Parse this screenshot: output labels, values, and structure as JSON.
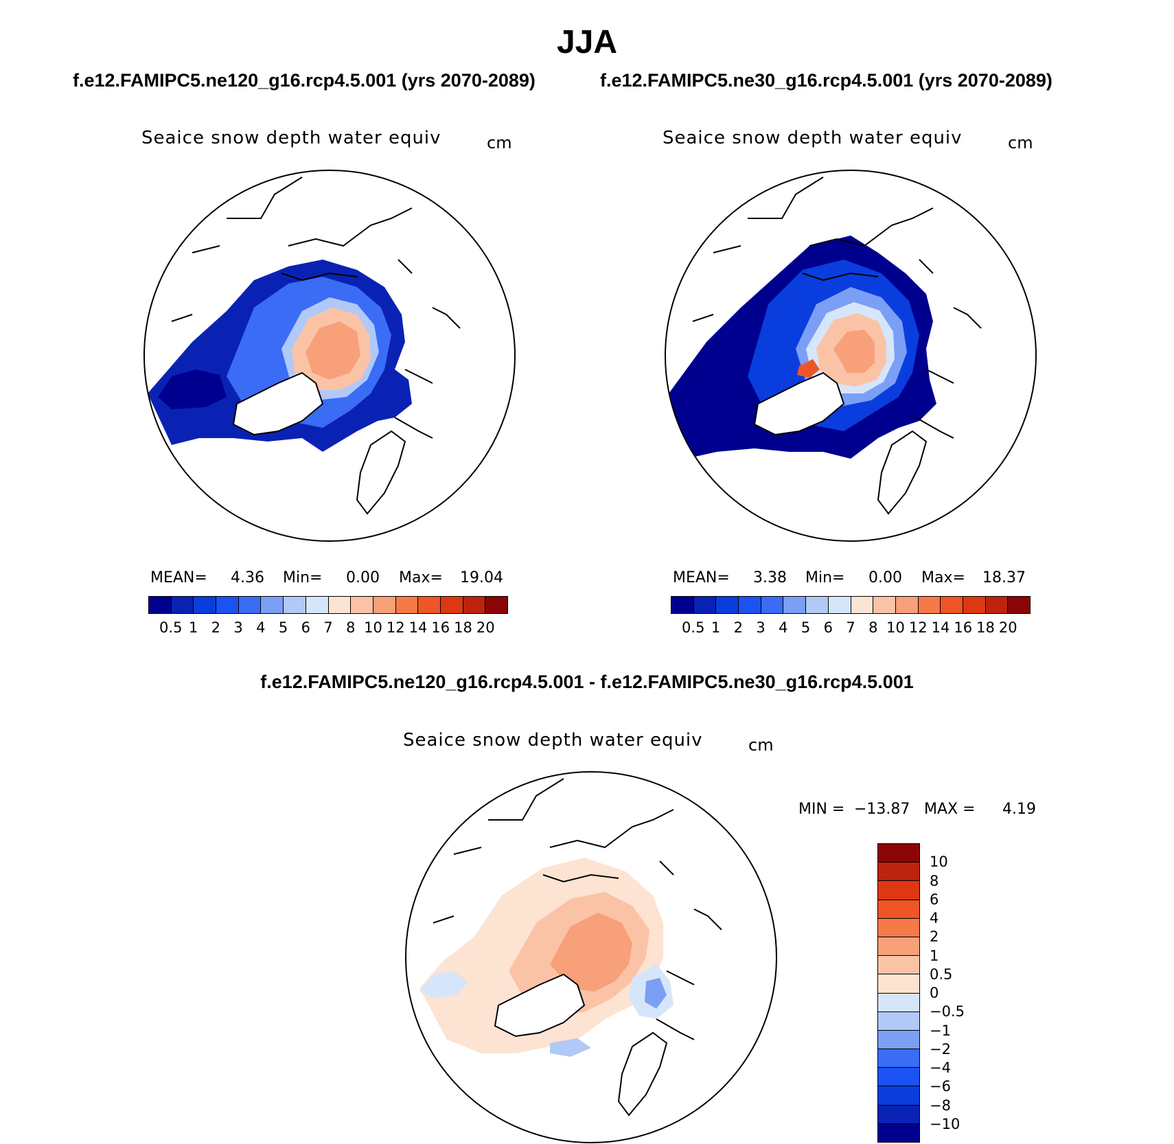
{
  "title": "JJA",
  "panel_left": {
    "case": "f.e12.FAMIPC5.ne120_g16.rcp4.5.001 (yrs 2070-2089)",
    "variable": "Seaice snow depth water equiv",
    "units": "cm",
    "mean_label": "MEAN=",
    "mean": "4.36",
    "min_label": "Min=",
    "min": "0.00",
    "max_label": "Max=",
    "max": "19.04"
  },
  "panel_right": {
    "case": "f.e12.FAMIPC5.ne30_g16.rcp4.5.001 (yrs 2070-2089)",
    "variable": "Seaice snow depth water equiv",
    "units": "cm",
    "mean_label": "MEAN=",
    "mean": "3.38",
    "min_label": "Min=",
    "min": "0.00",
    "max_label": "Max=",
    "max": "18.37"
  },
  "panel_diff": {
    "case": "f.e12.FAMIPC5.ne120_g16.rcp4.5.001 - f.e12.FAMIPC5.ne30_g16.rcp4.5.001",
    "variable": "Seaice snow depth water equiv",
    "units": "cm",
    "min_label": "MIN =",
    "min": "−13.87",
    "max_label": "MAX =",
    "max": "4.19"
  },
  "colorbar_abs": {
    "labels": [
      "0.5",
      "1",
      "2",
      "3",
      "4",
      "5",
      "6",
      "7",
      "8",
      "10",
      "12",
      "14",
      "16",
      "18",
      "20"
    ],
    "colors": [
      "#00008e",
      "#0a22b4",
      "#0a3ddd",
      "#1b52f2",
      "#3a6cf5",
      "#7a9ff5",
      "#b1c9f7",
      "#d6e6fa",
      "#fde3d2",
      "#fbc3a6",
      "#f8a07a",
      "#f67a48",
      "#ef5526",
      "#de3813",
      "#bd230f",
      "#8a0606"
    ]
  },
  "colorbar_diff": {
    "labels": [
      "10",
      "8",
      "6",
      "4",
      "2",
      "1",
      "0.5",
      "0",
      "−0.5",
      "−1",
      "−2",
      "−4",
      "−6",
      "−8",
      "−10"
    ],
    "colors": [
      "#8a0606",
      "#bd230f",
      "#de3813",
      "#ef5526",
      "#f67a48",
      "#f8a07a",
      "#fbc3a6",
      "#fde3d2",
      "#d6e6fa",
      "#b1c9f7",
      "#7a9ff5",
      "#3a6cf5",
      "#1b52f2",
      "#0a3ddd",
      "#0a22b4",
      "#00008e"
    ]
  }
}
